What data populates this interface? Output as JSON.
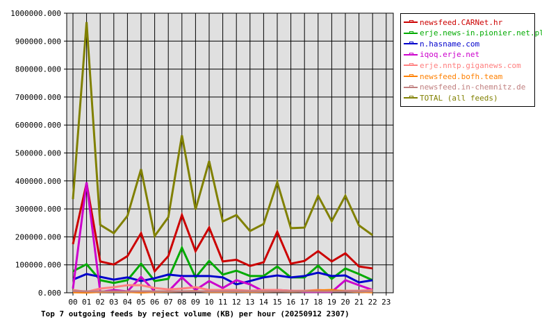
{
  "chart_data": {
    "type": "line",
    "title": "Top 7 outgoing feeds by reject volume (KB) per hour (20250912 2307)",
    "xlabel": "",
    "ylabel": "",
    "ylim": [
      0,
      1000000
    ],
    "grid": true,
    "legend_position": "right",
    "categories": [
      "00",
      "01",
      "02",
      "03",
      "04",
      "05",
      "06",
      "07",
      "08",
      "09",
      "10",
      "11",
      "12",
      "13",
      "14",
      "15",
      "16",
      "17",
      "18",
      "19",
      "20",
      "21",
      "22",
      "23"
    ],
    "y_ticks": [
      "0.000",
      "100000.000",
      "200000.000",
      "300000.000",
      "400000.000",
      "500000.000",
      "600000.000",
      "700000.000",
      "800000.000",
      "900000.000",
      "1000000.000"
    ],
    "series": [
      {
        "name": "newsfeed.CARNet.hr",
        "color": "#cc0000",
        "values": [
          174000,
          392000,
          112000,
          101000,
          131000,
          213000,
          77000,
          131000,
          278000,
          149000,
          233000,
          112000,
          118000,
          96000,
          109000,
          218000,
          104000,
          114000,
          149000,
          112000,
          141000,
          94000,
          87000
        ]
      },
      {
        "name": "erje.news-in.pionier.net.pl",
        "color": "#00aa00",
        "values": [
          77000,
          102000,
          45000,
          35000,
          45000,
          104000,
          42000,
          50000,
          161000,
          55000,
          114000,
          65000,
          79000,
          60000,
          60000,
          94000,
          55000,
          55000,
          97000,
          50000,
          87000,
          67000,
          45000
        ]
      },
      {
        "name": "n.hasname.com",
        "color": "#0000cc",
        "values": [
          47000,
          67000,
          57000,
          47000,
          55000,
          42000,
          52000,
          65000,
          60000,
          60000,
          60000,
          55000,
          30000,
          42000,
          55000,
          62000,
          55000,
          60000,
          72000,
          60000,
          62000,
          37000,
          45000
        ]
      },
      {
        "name": "iqoq.erje.net",
        "color": "#cc00cc",
        "values": [
          15000,
          395000,
          3000,
          10000,
          5000,
          57000,
          5000,
          5000,
          55000,
          10000,
          42000,
          17000,
          45000,
          30000,
          5000,
          10000,
          7000,
          3000,
          3000,
          3000,
          45000,
          27000,
          10000
        ]
      },
      {
        "name": "erje.nntp.giganews.com",
        "color": "#ff8080",
        "values": [
          10000,
          3000,
          15000,
          20000,
          27000,
          27000,
          17000,
          12000,
          15000,
          20000,
          10000,
          10000,
          10000,
          7000,
          10000,
          10000,
          7000,
          7000,
          10000,
          7000,
          7000,
          7000,
          10000
        ]
      },
      {
        "name": "newsfeed.bofh.team",
        "color": "#ff8000",
        "values": [
          2000,
          1000,
          3000,
          4000,
          3000,
          1000,
          3000,
          4000,
          5000,
          6000,
          3000,
          3000,
          4000,
          3000,
          4000,
          5000,
          4000,
          5000,
          8000,
          10000,
          5000,
          3000,
          2000
        ]
      },
      {
        "name": "newsfeed.in-chemnitz.de",
        "color": "#c08080",
        "values": [
          6000,
          5000,
          5000,
          5000,
          5000,
          5000,
          5000,
          5000,
          5000,
          5000,
          5000,
          5000,
          5000,
          5000,
          5000,
          5000,
          5000,
          5000,
          5000,
          5000,
          5000,
          5000,
          5000
        ]
      },
      {
        "name": "TOTAL (all feeds)",
        "color": "#808000",
        "values": [
          335000,
          968000,
          243000,
          213000,
          275000,
          442000,
          203000,
          270000,
          563000,
          298000,
          471000,
          255000,
          278000,
          221000,
          246000,
          395000,
          231000,
          233000,
          347000,
          256000,
          347000,
          241000,
          206000
        ]
      }
    ]
  }
}
